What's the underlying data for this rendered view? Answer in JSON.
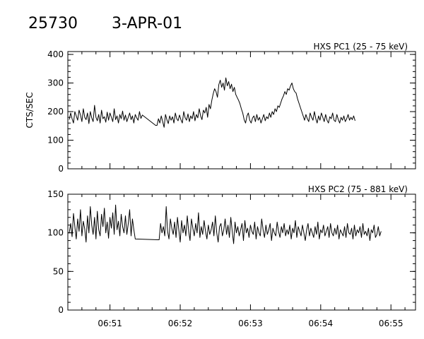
{
  "header": {
    "event_id": "25730",
    "date": "3-APR-01"
  },
  "chart_data": [
    {
      "type": "line",
      "title": "HXS PC1 (25 - 75 keV)",
      "ylabel": "CTS/SEC",
      "xlabel": "",
      "ylim": [
        0,
        410
      ],
      "xlim_minutes": [
        50.4,
        55.35
      ],
      "yticks": [
        0,
        100,
        200,
        300,
        400
      ],
      "grid": false,
      "series": [
        {
          "x_start_minute": 50.42,
          "x_step_minutes": 0.02,
          "values": [
            172,
            195,
            175,
            160,
            200,
            185,
            170,
            205,
            188,
            165,
            210,
            180,
            172,
            195,
            158,
            200,
            178,
            165,
            222,
            180,
            168,
            190,
            160,
            205,
            175,
            182,
            163,
            198,
            170,
            195,
            180,
            165,
            210,
            172,
            185,
            160,
            190,
            175,
            202,
            170,
            188,
            165,
            180,
            195,
            172,
            185,
            160,
            190,
            178,
            170,
            200,
            176,
            188
          ],
          "gap_to": {
            "x": 51.65,
            "y": 152
          },
          "values_after_gap": [
            152,
            175,
            160,
            185,
            165,
            145,
            190,
            172,
            158,
            185,
            170,
            182,
            160,
            195,
            175,
            168,
            188,
            172,
            160,
            200,
            178,
            170,
            192,
            165,
            185,
            175,
            200,
            168,
            190,
            178,
            210,
            185,
            172,
            205,
            195,
            215,
            180,
            225,
            210,
            240,
            262,
            280,
            270,
            250,
            295,
            310,
            285,
            300,
            275,
            318,
            290,
            305,
            280,
            296,
            270,
            285,
            260,
            250,
            240,
            228,
            210,
            195,
            172,
            160,
            185,
            195,
            170,
            160,
            178,
            185,
            165,
            190,
            170,
            180,
            160,
            175,
            190,
            168,
            182,
            175,
            195,
            180,
            200,
            190,
            210,
            200,
            220,
            215,
            230,
            245,
            255,
            270,
            260,
            280,
            275,
            290,
            300,
            280,
            270,
            265,
            245,
            230,
            215,
            200,
            185,
            170,
            190,
            175,
            165,
            195,
            180,
            170,
            200,
            175,
            160,
            185,
            170,
            195,
            180,
            165,
            190,
            170,
            160,
            182,
            175,
            195,
            170,
            165,
            190,
            172,
            160,
            180,
            170,
            185,
            165,
            175,
            190,
            170,
            180,
            172,
            185,
            168
          ]
        }
      ]
    },
    {
      "type": "line",
      "title": "HXS PC2 (75 - 881 keV)",
      "ylabel": "",
      "xlabel": "",
      "ylim": [
        0,
        150
      ],
      "xlim_minutes": [
        50.4,
        55.35
      ],
      "yticks": [
        0,
        50,
        100,
        150
      ],
      "xticks": [
        "06:51",
        "06:52",
        "06:53",
        "06:54",
        "06:55"
      ],
      "grid": false,
      "series": [
        {
          "x_start_minute": 50.42,
          "x_step_minutes": 0.02,
          "values": [
            100,
            112,
            95,
            125,
            108,
            92,
            118,
            102,
            130,
            96,
            115,
            105,
            88,
            122,
            100,
            134,
            110,
            98,
            120,
            92,
            128,
            104,
            96,
            124,
            108,
            132,
            100,
            114,
            93,
            120,
            106,
            126,
            98,
            136,
            104,
            115,
            96,
            124,
            108,
            100,
            122,
            98,
            112,
            130,
            96,
            118,
            104,
            92
          ],
          "gap_to": {
            "x": 51.68,
            "y": 91
          },
          "values_after_gap": [
            91,
            112,
            100,
            108,
            96,
            134,
            102,
            92,
            118,
            106,
            98,
            114,
            94,
            120,
            104,
            88,
            116,
            100,
            110,
            96,
            122,
            102,
            90,
            118,
            106,
            96,
            112,
            100,
            126,
            94,
            108,
            98,
            116,
            102,
            92,
            110,
            98,
            104,
            114,
            96,
            122,
            100,
            88,
            108,
            112,
            96,
            104,
            118,
            98,
            110,
            94,
            120,
            102,
            86,
            114,
            100,
            108,
            96,
            104,
            112,
            90,
            116,
            100,
            106,
            94,
            110,
            102,
            98,
            114,
            92,
            108,
            100,
            96,
            118,
            104,
            94,
            110,
            98,
            104,
            112,
            90,
            106,
            100,
            96,
            114,
            102,
            94,
            108,
            100,
            112,
            96,
            104,
            98,
            110,
            92,
            106,
            100,
            116,
            94,
            108,
            102,
            96,
            110,
            100,
            90,
            104,
            112,
            96,
            106,
            100,
            94,
            108,
            98,
            114,
            92,
            104,
            100,
            110,
            96,
            102,
            108,
            94,
            112,
            100,
            96,
            106,
            98,
            110,
            92,
            104,
            100,
            96,
            108,
            94,
            112,
            100,
            98,
            106,
            92,
            110,
            96,
            104,
            100,
            108,
            94,
            112,
            98,
            102,
            96,
            106,
            90,
            104,
            100,
            110,
            94,
            98,
            108,
            96,
            102
          ]
        }
      ]
    }
  ]
}
